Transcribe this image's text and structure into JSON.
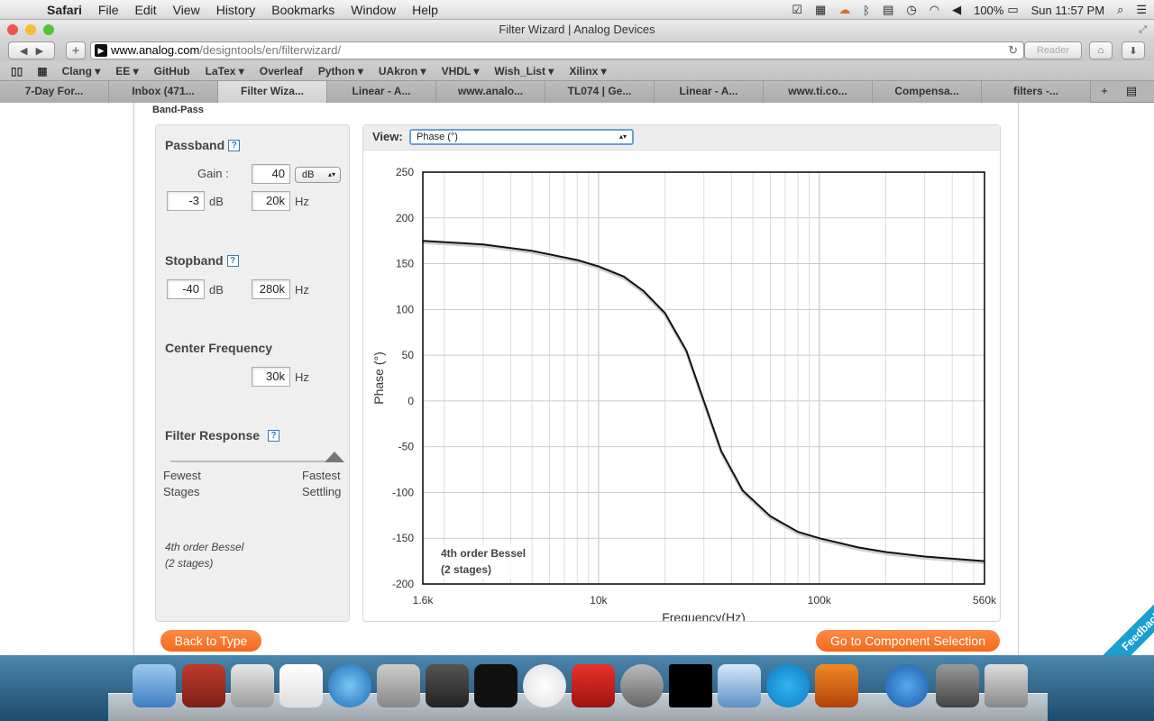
{
  "menubar": {
    "app": "Safari",
    "items": [
      "File",
      "Edit",
      "View",
      "History",
      "Bookmarks",
      "Window",
      "Help"
    ],
    "battery": "100%",
    "clock": "Sun 11:57 PM"
  },
  "window": {
    "title": "Filter Wizard | Analog Devices",
    "url_host": "www.analog.com",
    "url_path": "/designtools/en/filterwizard/",
    "reader": "Reader"
  },
  "bookmarks": [
    "Clang ▾",
    "EE ▾",
    "GitHub",
    "LaTex ▾",
    "Overleaf",
    "Python ▾",
    "UAkron ▾",
    "VHDL ▾",
    "Wish_List ▾",
    "Xilinx ▾"
  ],
  "tabs": [
    "7-Day For...",
    "Inbox (471...",
    "Filter Wiza...",
    "Linear - A...",
    "www.analo...",
    "TL074 | Ge...",
    "Linear - A...",
    "www.ti.co...",
    "Compensa...",
    "filters -..."
  ],
  "page": {
    "band_label": "Band-Pass",
    "passband": {
      "title": "Passband",
      "gain_label": "Gain :",
      "gain_value": "40",
      "gain_unit": "dB",
      "atten_value": "-3",
      "atten_unit": "dB",
      "freq_value": "20k",
      "freq_unit": "Hz"
    },
    "stopband": {
      "title": "Stopband",
      "atten_value": "-40",
      "atten_unit": "dB",
      "freq_value": "280k",
      "freq_unit": "Hz"
    },
    "center": {
      "title": "Center Frequency",
      "value": "30k",
      "unit": "Hz"
    },
    "response": {
      "title": "Filter Response",
      "left_line1": "Fewest",
      "left_line2": "Stages",
      "right_line1": "Fastest",
      "right_line2": "Settling",
      "slider_level": 1.0
    },
    "filter_desc_line1": "4th order Bessel",
    "filter_desc_line2": "(2 stages)",
    "view_label": "View:",
    "view_value": "Phase (°)",
    "back_button": "Back to Type",
    "next_button": "Go to Component Selection",
    "feedback": "Feedback"
  },
  "chart_data": {
    "type": "line",
    "xlabel": "Frequency(Hz)",
    "ylabel": "Phase (°)",
    "xscale": "log",
    "xlim": [
      1600,
      560000
    ],
    "ylim": [
      -200,
      250
    ],
    "yticks": [
      250,
      200,
      150,
      100,
      50,
      0,
      -50,
      -100,
      -150,
      -200
    ],
    "xtick_labels": [
      "1.6k",
      "10k",
      "100k",
      "560k"
    ],
    "xtick_values": [
      1600,
      10000,
      100000,
      560000
    ],
    "grid": true,
    "annotation_line1": "4th order Bessel",
    "annotation_line2": "(2 stages)",
    "series": [
      {
        "x": [
          1600,
          3000,
          5000,
          8000,
          10000,
          13000,
          16000,
          20000,
          25000,
          30000,
          36000,
          45000,
          60000,
          80000,
          100000,
          150000,
          200000,
          300000,
          560000
        ],
        "y": [
          175,
          171,
          164,
          154,
          147,
          136,
          120,
          96,
          55,
          0,
          -55,
          -98,
          -126,
          -143,
          -150,
          -160,
          -165,
          -170,
          -175
        ]
      }
    ]
  },
  "colors": {
    "accent": "#f26a1b",
    "feedback": "#1a9fd0",
    "curve": "#111111"
  }
}
